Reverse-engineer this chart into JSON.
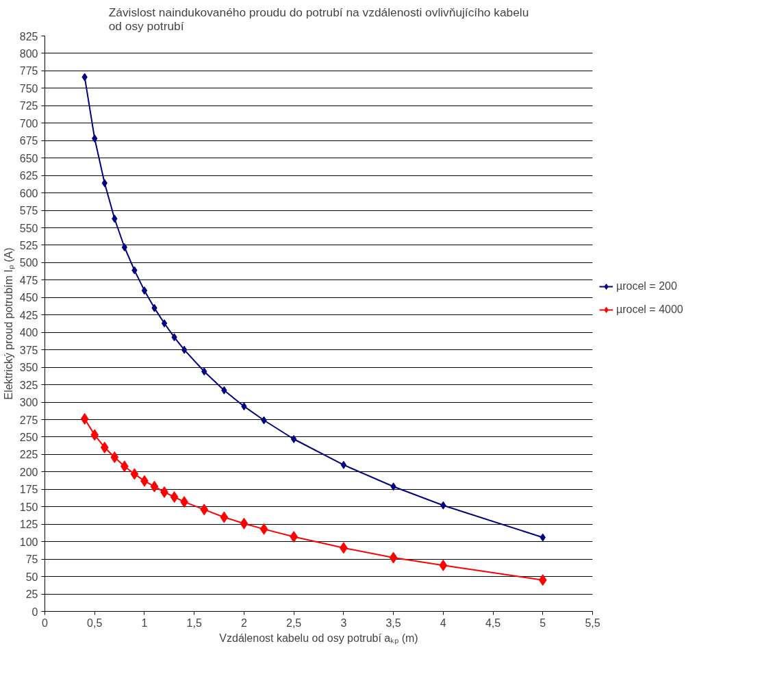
{
  "chart_data": {
    "type": "line",
    "title": "Závislost naindukovaného proudu do potrubí na vzdálenosti ovlivňujícího kabelu\nod osy potrubí",
    "xlabel": "Vzdálenost kabelu od osy potrubí aₖₚ (m)",
    "ylabel": "Elektrický proud potrubím Iₚ (A)",
    "x": [
      0.4,
      0.5,
      0.6,
      0.7,
      0.8,
      0.9,
      1.0,
      1.1,
      1.2,
      1.3,
      1.4,
      1.6,
      1.8,
      2.0,
      2.2,
      2.5,
      3.0,
      3.5,
      4.0,
      5.0
    ],
    "series": [
      {
        "name": "µrocel = 200",
        "color": "#000080",
        "marker": "diamond",
        "values": [
          766,
          678,
          614,
          563,
          522,
          489,
          460,
          435,
          413,
          393,
          375,
          344,
          317,
          294,
          274,
          247,
          210,
          179,
          152,
          106
        ]
      },
      {
        "name": "µrocel = 4000",
        "color": "#ff0000",
        "marker": "diamond",
        "values": [
          276,
          253,
          235,
          221,
          208,
          197,
          187,
          179,
          171,
          164,
          157,
          146,
          135,
          126,
          118,
          107,
          91,
          77,
          66,
          45
        ]
      }
    ],
    "xlim": [
      0,
      5.5
    ],
    "xticks": [
      0,
      {
        "value": 0.5,
        "label": "0,5"
      },
      1,
      {
        "value": 1.5,
        "label": "1,5"
      },
      2,
      {
        "value": 2.5,
        "label": "2,5"
      },
      3,
      {
        "value": 3.5,
        "label": "3,5"
      },
      4,
      {
        "value": 4.5,
        "label": "4,5"
      },
      5,
      {
        "value": 5.5,
        "label": "5,5"
      }
    ],
    "ylim": [
      0,
      825
    ],
    "yticks": [
      0,
      25,
      50,
      75,
      100,
      125,
      150,
      175,
      200,
      225,
      250,
      275,
      300,
      325,
      350,
      375,
      400,
      425,
      450,
      475,
      500,
      525,
      550,
      575,
      600,
      625,
      650,
      675,
      700,
      725,
      750,
      775,
      800,
      825
    ],
    "grid": "y",
    "legend": "right",
    "line_style": "solid"
  }
}
